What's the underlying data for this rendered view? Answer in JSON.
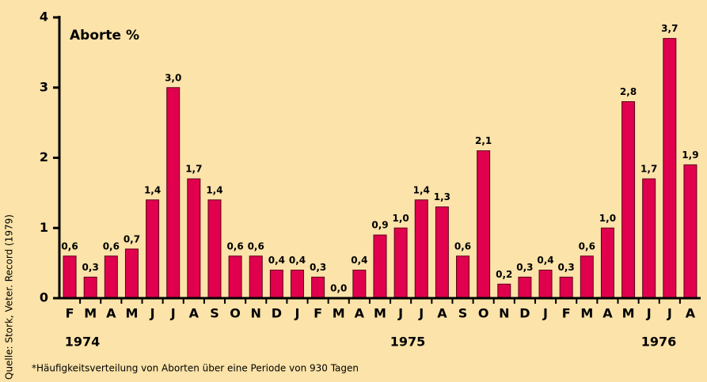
{
  "chart_data": {
    "type": "bar",
    "title": "Aborte %",
    "categories": [
      "F",
      "M",
      "A",
      "M",
      "J",
      "J",
      "A",
      "S",
      "O",
      "N",
      "D",
      "J",
      "F",
      "M",
      "A",
      "M",
      "J",
      "J",
      "A",
      "S",
      "O",
      "N",
      "D",
      "J",
      "F",
      "M",
      "A",
      "M",
      "J",
      "J",
      "A"
    ],
    "values": [
      0.6,
      0.3,
      0.6,
      0.7,
      1.4,
      3.0,
      1.7,
      1.4,
      0.6,
      0.6,
      0.4,
      0.4,
      0.3,
      0.0,
      0.4,
      0.9,
      1.0,
      1.4,
      1.3,
      0.6,
      2.1,
      0.2,
      0.3,
      0.4,
      0.3,
      0.6,
      1.0,
      2.8,
      1.7,
      3.7,
      1.9
    ],
    "value_labels": [
      "0,6",
      "0,3",
      "0,6",
      "0,7",
      "1,4",
      "3,0",
      "1,7",
      "1,4",
      "0,6",
      "0,6",
      "0,4",
      "0,4",
      "0,3",
      "0,0",
      "0,4",
      "0,9",
      "1,0",
      "1,4",
      "1,3",
      "0,6",
      "2,1",
      "0,2",
      "0,3",
      "0,4",
      "0,3",
      "0,6",
      "1,0",
      "2,8",
      "1,7",
      "3,7",
      "1,9"
    ],
    "color": "#e0004d",
    "ylim": [
      0,
      4
    ],
    "yticks": [
      0,
      1,
      2,
      3,
      4
    ],
    "year_labels": [
      "1974",
      "1975",
      "1976"
    ],
    "footnote": "*Häufigkeitsverteilung von Aborten über eine Periode von 930 Tagen",
    "source": "Quelle: Stork, Veter. Record (1979)"
  }
}
